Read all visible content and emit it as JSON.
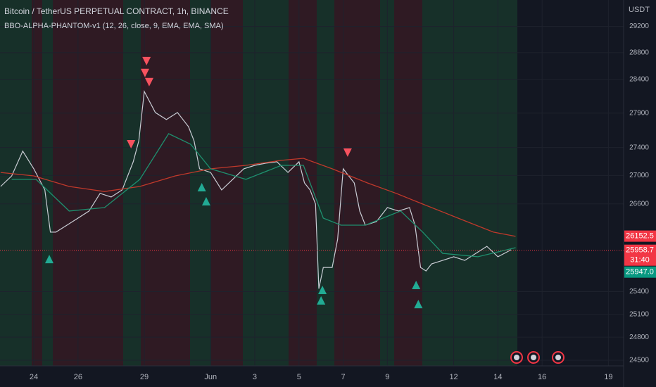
{
  "chart_data": {
    "type": "line",
    "title": "Bitcoin / TetherUS PERPETUAL CONTRACT, 1h, BINANCE",
    "subtitle": "BBO-ALPHA-PHANTOM-v1 (12, 26, close, 9, EMA, EMA, SMA)",
    "y_unit": "USDT",
    "log_scale": true,
    "grid": true,
    "xlim": [
      22.47,
      50.69
    ],
    "xticks": [
      {
        "value": 24,
        "label": "24"
      },
      {
        "value": 26,
        "label": "26"
      },
      {
        "value": 29,
        "label": "29"
      },
      {
        "value": 32,
        "label": "Jun"
      },
      {
        "value": 34,
        "label": "3"
      },
      {
        "value": 36,
        "label": "5"
      },
      {
        "value": 38,
        "label": "7"
      },
      {
        "value": 40,
        "label": "9"
      },
      {
        "value": 43,
        "label": "12"
      },
      {
        "value": 45,
        "label": "14"
      },
      {
        "value": 47,
        "label": "16"
      },
      {
        "value": 50,
        "label": "19"
      }
    ],
    "ylim": [
      24428,
      29609
    ],
    "yticks": [
      29200,
      28800,
      28400,
      27900,
      27400,
      27000,
      26600,
      25400,
      25100,
      24800,
      24500
    ],
    "series": [
      {
        "color": "#c9ccd4",
        "x": [
          22.5,
          23.0,
          23.5,
          24.0,
          24.5,
          24.75,
          25.0,
          25.5,
          26.0,
          26.5,
          27.0,
          27.5,
          28.0,
          28.5,
          28.75,
          29.0,
          29.5,
          30.0,
          30.5,
          31.0,
          31.25,
          31.5,
          32.0,
          32.5,
          33.0,
          33.5,
          34.0,
          34.5,
          35.0,
          35.5,
          36.0,
          36.25,
          36.5,
          36.75,
          36.9,
          37.1,
          37.5,
          37.75,
          38.0,
          38.25,
          38.5,
          38.75,
          39.0,
          39.5,
          40.0,
          40.5,
          41.0,
          41.25,
          41.5,
          41.75,
          42.0,
          42.5,
          43.0,
          43.5,
          44.0,
          44.5,
          45.0,
          45.6
        ],
        "values": [
          26844,
          26994,
          27347,
          27095,
          26796,
          26208,
          26208,
          26304,
          26401,
          26500,
          26747,
          26696,
          26796,
          27195,
          27496,
          28219,
          27908,
          27805,
          27908,
          27702,
          27496,
          27095,
          27043,
          26796,
          26945,
          27095,
          27144,
          27175,
          27195,
          27043,
          27195,
          26894,
          26796,
          26597,
          25441,
          25725,
          25725,
          26110,
          27095,
          26994,
          26894,
          26500,
          26304,
          26352,
          26548,
          26500,
          26548,
          26304,
          25725,
          25678,
          25774,
          25821,
          25870,
          25821,
          25916,
          26012,
          25870,
          25965
        ]
      },
      {
        "color": "#c0392b",
        "x": [
          22.5,
          24.0,
          25.6,
          27.2,
          28.8,
          30.4,
          32.0,
          33.6,
          35.2,
          36.2,
          37.5,
          39.1,
          40.4,
          41.6,
          43.2,
          44.8,
          45.8
        ],
        "values": [
          27043,
          26994,
          26844,
          26773,
          26844,
          26994,
          27095,
          27144,
          27215,
          27244,
          27095,
          26894,
          26747,
          26597,
          26401,
          26208,
          26149
        ]
      },
      {
        "color": "#1e8f6e",
        "x": [
          23.0,
          24.1,
          25.6,
          27.2,
          28.8,
          30.1,
          31.1,
          32.0,
          33.6,
          35.2,
          36.2,
          37.1,
          37.9,
          39.0,
          40.6,
          41.6,
          42.5,
          44.1,
          45.8
        ],
        "values": [
          26945,
          26945,
          26500,
          26548,
          26945,
          27599,
          27447,
          27095,
          26945,
          27144,
          27144,
          26401,
          26304,
          26304,
          26500,
          26208,
          25916,
          25870,
          25994
        ]
      }
    ],
    "markers": [
      {
        "x": 29.1,
        "y": 28672,
        "direction": "down",
        "color": "#f7525f"
      },
      {
        "x": 29.03,
        "y": 28494,
        "direction": "down",
        "color": "#f7525f"
      },
      {
        "x": 29.22,
        "y": 28357,
        "direction": "down",
        "color": "#f7525f"
      },
      {
        "x": 28.4,
        "y": 27447,
        "direction": "down",
        "color": "#f7525f"
      },
      {
        "x": 38.2,
        "y": 27327,
        "direction": "down",
        "color": "#f7525f"
      },
      {
        "x": 24.7,
        "y": 25840,
        "direction": "up",
        "color": "#22ab94"
      },
      {
        "x": 31.6,
        "y": 26835,
        "direction": "up",
        "color": "#22ab94"
      },
      {
        "x": 31.8,
        "y": 26637,
        "direction": "up",
        "color": "#22ab94"
      },
      {
        "x": 37.06,
        "y": 25424,
        "direction": "up",
        "color": "#22ab94"
      },
      {
        "x": 37.0,
        "y": 25284,
        "direction": "up",
        "color": "#22ab94"
      },
      {
        "x": 41.3,
        "y": 25490,
        "direction": "up",
        "color": "#22ab94"
      },
      {
        "x": 41.4,
        "y": 25235,
        "direction": "up",
        "color": "#22ab94"
      }
    ],
    "price_labels": [
      {
        "value": 26152.5,
        "color": "#f23645"
      },
      {
        "value": 25958.7,
        "color": "#f23645",
        "countdown": "31:40"
      },
      {
        "value": {
          "value": 25947.0,
          "label": "25947.0"
        },
        "color": "#089981"
      }
    ]
  }
}
